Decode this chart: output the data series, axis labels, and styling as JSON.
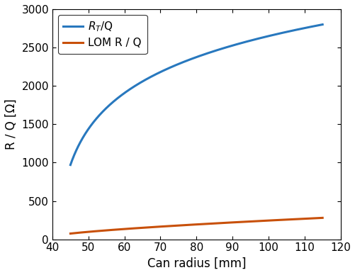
{
  "x_start": 45,
  "x_end": 115,
  "xlim": [
    40,
    120
  ],
  "ylim": [
    0,
    3000
  ],
  "xlabel": "Can radius [mm]",
  "ylabel": "R / Q [Ω]",
  "xticks": [
    40,
    50,
    60,
    70,
    80,
    90,
    100,
    110,
    120
  ],
  "yticks": [
    0,
    500,
    1000,
    1500,
    2000,
    2500,
    3000
  ],
  "blue_color": "#2878BE",
  "orange_color": "#C8500A",
  "line_width": 2.2,
  "legend_label_blue": "$R_T$/Q",
  "legend_label_orange": "LOM R / Q",
  "blue_A": 1050.0,
  "blue_B": 43.5,
  "blue_p": 0.38,
  "blue_C": -100.0,
  "orange_A": 11.73,
  "orange_B": 40.0,
  "orange_p": 0.7,
  "orange_C": 38.77,
  "background_color": "#ffffff"
}
